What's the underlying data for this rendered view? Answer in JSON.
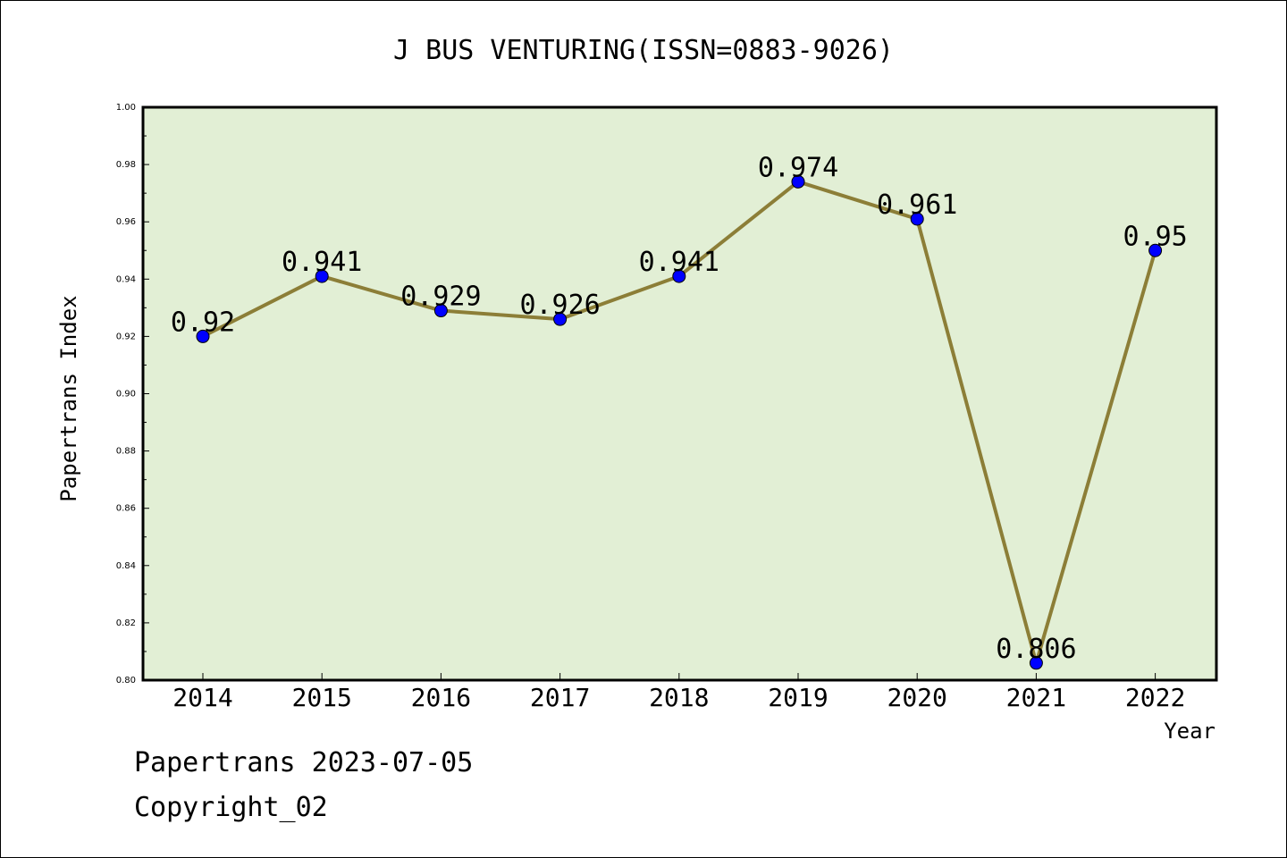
{
  "chart_data": {
    "type": "line",
    "title": "J BUS VENTURING(ISSN=0883-9026)",
    "xlabel": "Year",
    "ylabel": "Papertrans Index",
    "categories": [
      "2014",
      "2015",
      "2016",
      "2017",
      "2018",
      "2019",
      "2020",
      "2021",
      "2022"
    ],
    "series": [
      {
        "values": [
          0.92,
          0.941,
          0.929,
          0.926,
          0.941,
          0.974,
          0.961,
          0.806,
          0.95
        ],
        "labels": [
          "0.92",
          "0.941",
          "0.929",
          "0.926",
          "0.941",
          "0.974",
          "0.961",
          "0.806",
          "0.95"
        ]
      }
    ],
    "ylim": [
      0.8,
      1.0
    ],
    "yticks": [
      "0.80",
      "0.82",
      "0.84",
      "0.86",
      "0.88",
      "0.90",
      "0.92",
      "0.94",
      "0.96",
      "0.98",
      "1.00"
    ],
    "ytick_values": [
      0.8,
      0.82,
      0.84,
      0.86,
      0.88,
      0.9,
      0.92,
      0.94,
      0.96,
      0.98,
      1.0
    ],
    "grid": false,
    "colors": {
      "line": "#8c7e37",
      "marker": "#0000ff",
      "plot_background": "#e2efd5"
    }
  },
  "footer": {
    "line1": "Papertrans 2023-07-05",
    "line2": "Copyright_02"
  }
}
